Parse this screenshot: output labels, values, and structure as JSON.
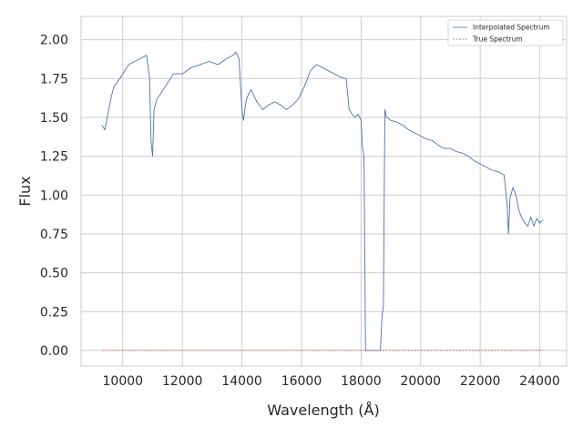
{
  "chart_data": {
    "type": "line",
    "xlabel": "Wavelength (Å)",
    "ylabel": "Flux",
    "xlim": [
      8600,
      24900
    ],
    "ylim": [
      -0.1,
      2.15
    ],
    "xticks": [
      10000,
      12000,
      14000,
      16000,
      18000,
      20000,
      22000,
      24000
    ],
    "yticks": [
      0.0,
      0.25,
      0.5,
      0.75,
      1.0,
      1.25,
      1.5,
      1.75,
      2.0
    ],
    "xtick_labels": [
      "10000",
      "12000",
      "14000",
      "16000",
      "18000",
      "20000",
      "22000",
      "24000"
    ],
    "ytick_labels": [
      "0.00",
      "0.25",
      "0.50",
      "0.75",
      "1.00",
      "1.25",
      "1.50",
      "1.75",
      "2.00"
    ],
    "grid": true,
    "legend_position": "top-right",
    "series": [
      {
        "name": "Interpolated Spectrum",
        "color": "#4c72b0",
        "style": "solid",
        "x": [
          9300,
          9400,
          9500,
          9600,
          9700,
          9800,
          9900,
          10000,
          10200,
          10400,
          10600,
          10800,
          10900,
          10950,
          11000,
          11050,
          11150,
          11300,
          11500,
          11700,
          12000,
          12300,
          12600,
          12900,
          13200,
          13500,
          13700,
          13800,
          13900,
          14000,
          14050,
          14150,
          14300,
          14500,
          14700,
          14900,
          15100,
          15300,
          15500,
          15700,
          15900,
          16100,
          16300,
          16500,
          16700,
          16900,
          17100,
          17300,
          17500,
          17600,
          17700,
          17800,
          17900,
          18000,
          18050,
          18100,
          18150,
          18200,
          18250,
          18600,
          18650,
          18700,
          18750,
          18800,
          18850,
          19000,
          19200,
          19400,
          19600,
          19800,
          20000,
          20200,
          20400,
          20600,
          20800,
          21000,
          21200,
          21400,
          21600,
          21800,
          22000,
          22200,
          22400,
          22600,
          22800,
          22900,
          22950,
          23000,
          23100,
          23200,
          23300,
          23400,
          23500,
          23600,
          23700,
          23800,
          23900,
          24000,
          24100
        ],
        "y": [
          1.45,
          1.42,
          1.52,
          1.62,
          1.7,
          1.72,
          1.75,
          1.78,
          1.84,
          1.86,
          1.88,
          1.9,
          1.75,
          1.35,
          1.25,
          1.55,
          1.62,
          1.66,
          1.72,
          1.78,
          1.78,
          1.82,
          1.84,
          1.86,
          1.84,
          1.88,
          1.9,
          1.92,
          1.88,
          1.55,
          1.48,
          1.62,
          1.68,
          1.6,
          1.55,
          1.58,
          1.6,
          1.58,
          1.55,
          1.58,
          1.62,
          1.7,
          1.8,
          1.84,
          1.82,
          1.8,
          1.78,
          1.76,
          1.75,
          1.55,
          1.52,
          1.5,
          1.52,
          1.48,
          1.3,
          1.25,
          0.0,
          0.0,
          0.0,
          0.0,
          0.0,
          0.22,
          0.28,
          1.55,
          1.5,
          1.48,
          1.47,
          1.45,
          1.42,
          1.4,
          1.38,
          1.36,
          1.35,
          1.32,
          1.3,
          1.3,
          1.28,
          1.27,
          1.25,
          1.22,
          1.2,
          1.18,
          1.16,
          1.15,
          1.13,
          0.95,
          0.75,
          0.98,
          1.05,
          1.0,
          0.9,
          0.85,
          0.82,
          0.8,
          0.86,
          0.8,
          0.85,
          0.82,
          0.84
        ]
      },
      {
        "name": "True Spectrum",
        "color": "#c44e52",
        "style": "dashed",
        "x": [
          9300,
          24100
        ],
        "y": [
          0.0,
          0.0
        ]
      }
    ]
  }
}
